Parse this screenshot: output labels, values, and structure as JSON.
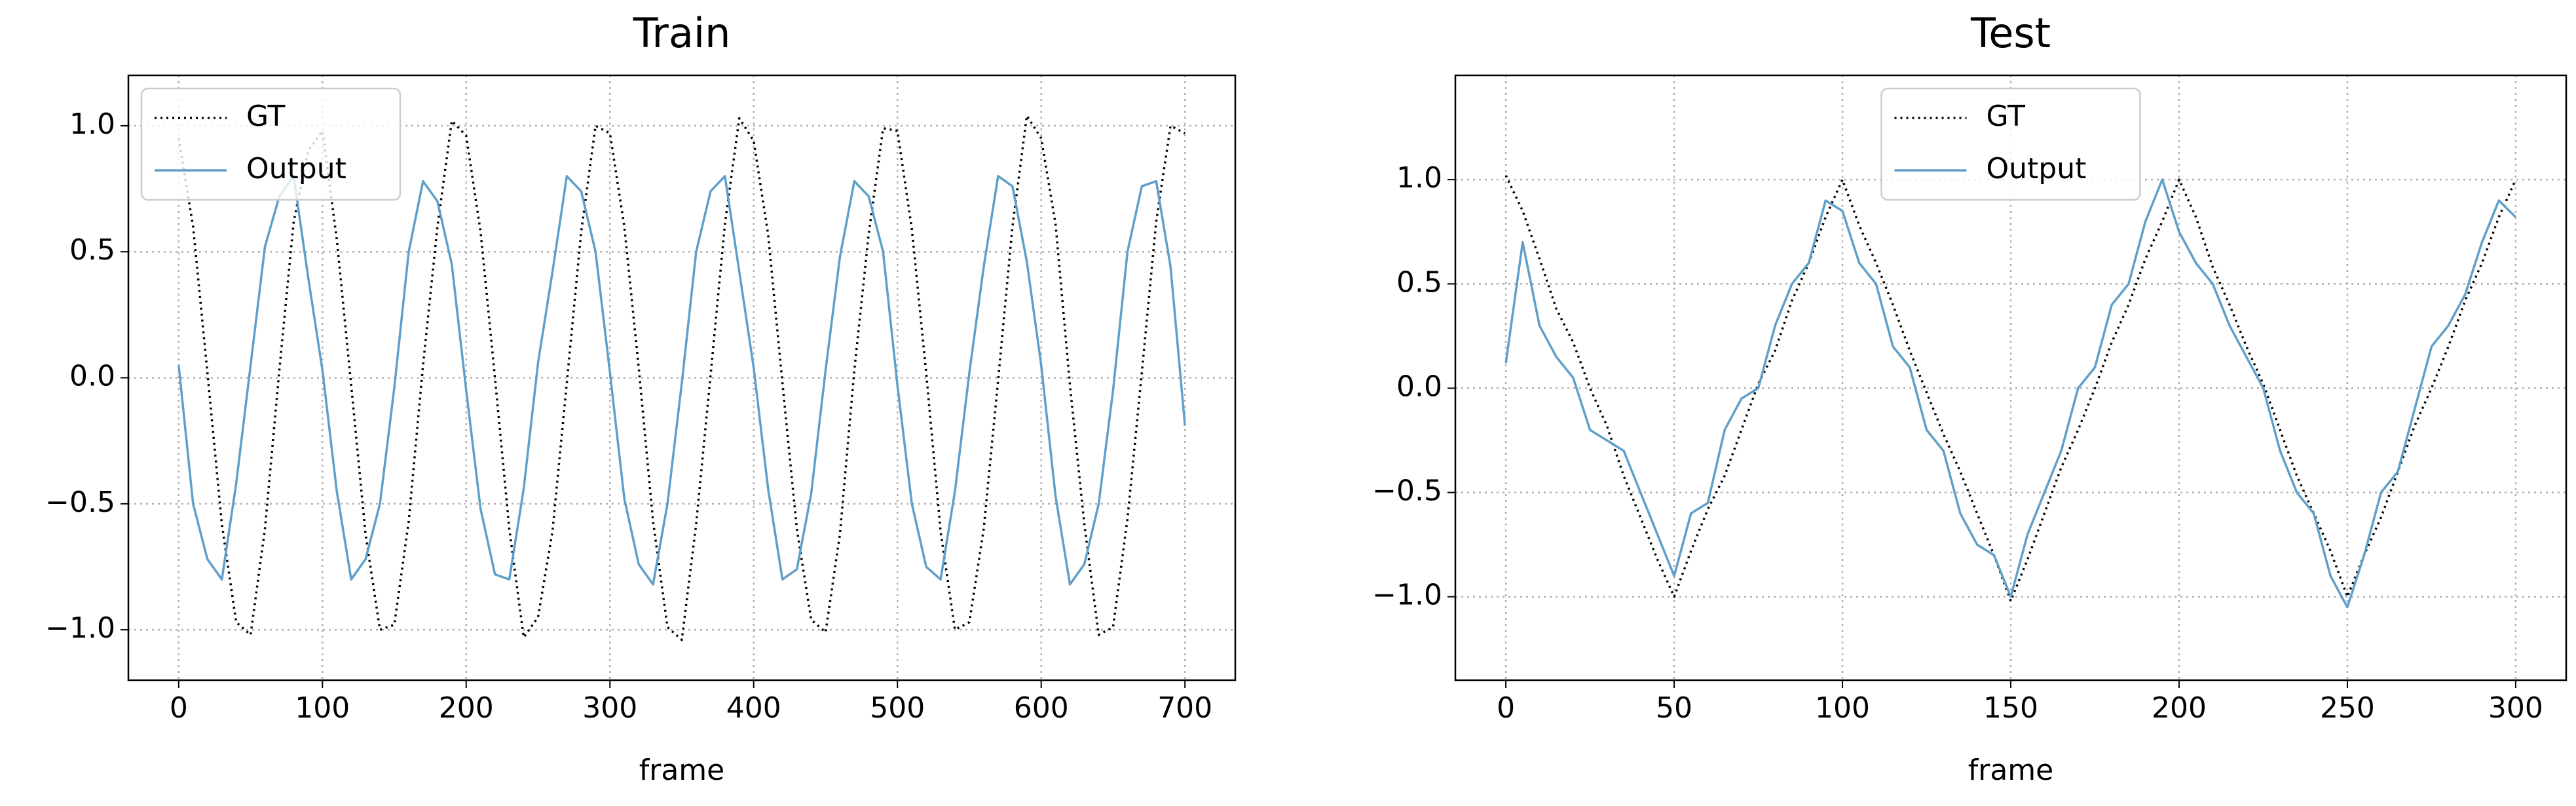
{
  "chart_data": [
    {
      "type": "line",
      "title": "Train",
      "xlabel": "frame",
      "x": [
        0,
        10,
        20,
        30,
        40,
        50,
        60,
        70,
        80,
        90,
        100,
        110,
        120,
        130,
        140,
        150,
        160,
        170,
        180,
        190,
        200,
        210,
        220,
        230,
        240,
        250,
        260,
        270,
        280,
        290,
        300,
        310,
        320,
        330,
        340,
        350,
        360,
        370,
        380,
        390,
        400,
        410,
        420,
        430,
        440,
        450,
        460,
        470,
        480,
        490,
        500,
        510,
        520,
        530,
        540,
        550,
        560,
        570,
        580,
        590,
        600,
        610,
        620,
        630,
        640,
        650,
        660,
        670,
        680,
        690,
        700
      ],
      "series": [
        {
          "name": "GT",
          "color": "#000000",
          "linestyle": "dotted",
          "values": [
            0.95,
            0.6,
            0.02,
            -0.58,
            -0.97,
            -1.02,
            -0.6,
            0.03,
            0.62,
            0.9,
            0.98,
            0.55,
            -0.03,
            -0.62,
            -1.0,
            -0.98,
            -0.57,
            0.05,
            0.6,
            1.02,
            0.96,
            0.58,
            0.0,
            -0.6,
            -1.03,
            -0.95,
            -0.61,
            -0.02,
            0.58,
            1.0,
            0.97,
            0.6,
            0.04,
            -0.57,
            -0.99,
            -1.04,
            -0.58,
            0.01,
            0.61,
            1.03,
            0.94,
            0.57,
            -0.02,
            -0.6,
            -0.96,
            -1.01,
            -0.62,
            0.03,
            0.57,
            0.99,
            0.98,
            0.59,
            0.02,
            -0.61,
            -1.0,
            -0.97,
            -0.6,
            -0.01,
            0.6,
            1.04,
            0.95,
            0.61,
            -0.03,
            -0.58,
            -1.02,
            -0.99,
            -0.56,
            0.02,
            0.62,
            1.0,
            0.97
          ]
        },
        {
          "name": "Output",
          "color": "#5f9fc9",
          "linestyle": "solid",
          "values": [
            0.05,
            -0.5,
            -0.72,
            -0.8,
            -0.42,
            0.05,
            0.52,
            0.72,
            0.8,
            0.4,
            0.03,
            -0.45,
            -0.8,
            -0.72,
            -0.5,
            -0.04,
            0.5,
            0.78,
            0.7,
            0.45,
            -0.05,
            -0.52,
            -0.78,
            -0.8,
            -0.44,
            0.06,
            0.42,
            0.8,
            0.74,
            0.5,
            0.02,
            -0.48,
            -0.74,
            -0.82,
            -0.5,
            -0.02,
            0.5,
            0.74,
            0.8,
            0.42,
            0.04,
            -0.44,
            -0.8,
            -0.76,
            -0.46,
            0.03,
            0.48,
            0.78,
            0.72,
            0.5,
            -0.03,
            -0.5,
            -0.75,
            -0.8,
            -0.45,
            0.02,
            0.44,
            0.8,
            0.76,
            0.46,
            0.05,
            -0.47,
            -0.82,
            -0.74,
            -0.5,
            -0.05,
            0.5,
            0.76,
            0.78,
            0.44,
            -0.19
          ]
        }
      ],
      "xlim": [
        -35,
        735
      ],
      "xticks": [
        0,
        100,
        200,
        300,
        400,
        500,
        600,
        700
      ],
      "ylim": [
        -1.2,
        1.2
      ],
      "yticks": [
        {
          "value": -1,
          "label": "−1.0"
        },
        {
          "value": -0.5,
          "label": "−0.5"
        },
        {
          "value": 0,
          "label": "0.0"
        },
        {
          "value": 0.5,
          "label": "0.5"
        },
        {
          "value": 1,
          "label": "1.0"
        }
      ],
      "grid": true,
      "legend": "upper left"
    },
    {
      "type": "line",
      "title": "Test",
      "xlabel": "frame",
      "x": [
        0,
        5,
        10,
        15,
        20,
        25,
        30,
        35,
        40,
        45,
        50,
        55,
        60,
        65,
        70,
        75,
        80,
        85,
        90,
        95,
        100,
        105,
        110,
        115,
        120,
        125,
        130,
        135,
        140,
        145,
        150,
        155,
        160,
        165,
        170,
        175,
        180,
        185,
        190,
        195,
        200,
        205,
        210,
        215,
        220,
        225,
        230,
        235,
        240,
        245,
        250,
        255,
        260,
        265,
        270,
        275,
        280,
        285,
        290,
        295,
        300
      ],
      "series": [
        {
          "name": "GT",
          "color": "#000000",
          "linestyle": "dotted",
          "values": [
            1.02,
            0.85,
            0.62,
            0.38,
            0.22,
            0.0,
            -0.18,
            -0.42,
            -0.62,
            -0.82,
            -1.0,
            -0.78,
            -0.58,
            -0.42,
            -0.2,
            0.02,
            0.18,
            0.42,
            0.6,
            0.82,
            1.0,
            0.78,
            0.6,
            0.4,
            0.18,
            -0.02,
            -0.22,
            -0.4,
            -0.6,
            -0.8,
            -1.02,
            -0.82,
            -0.6,
            -0.38,
            -0.2,
            0.0,
            0.22,
            0.4,
            0.62,
            0.8,
            1.0,
            0.82,
            0.58,
            0.4,
            0.2,
            0.02,
            -0.2,
            -0.42,
            -0.6,
            -0.78,
            -1.0,
            -0.8,
            -0.62,
            -0.4,
            -0.18,
            0.0,
            0.2,
            0.42,
            0.6,
            0.82,
            1.0
          ]
        },
        {
          "name": "Output",
          "color": "#5f9fc9",
          "linestyle": "solid",
          "values": [
            0.12,
            0.7,
            0.3,
            0.15,
            0.05,
            -0.2,
            -0.25,
            -0.3,
            -0.5,
            -0.7,
            -0.9,
            -0.6,
            -0.55,
            -0.2,
            -0.05,
            0.0,
            0.3,
            0.5,
            0.6,
            0.9,
            0.85,
            0.6,
            0.5,
            0.2,
            0.1,
            -0.2,
            -0.3,
            -0.6,
            -0.75,
            -0.8,
            -1.0,
            -0.7,
            -0.5,
            -0.3,
            0.0,
            0.1,
            0.4,
            0.5,
            0.8,
            1.0,
            0.75,
            0.6,
            0.5,
            0.3,
            0.15,
            0.0,
            -0.3,
            -0.5,
            -0.6,
            -0.9,
            -1.05,
            -0.8,
            -0.5,
            -0.4,
            -0.1,
            0.2,
            0.3,
            0.45,
            0.7,
            0.9,
            0.82
          ]
        }
      ],
      "xlim": [
        -15,
        315
      ],
      "xticks": [
        0,
        50,
        100,
        150,
        200,
        250,
        300
      ],
      "ylim": [
        -1.4,
        1.5
      ],
      "yticks": [
        {
          "value": -1,
          "label": "−1.0"
        },
        {
          "value": -0.5,
          "label": "−0.5"
        },
        {
          "value": 0,
          "label": "0.0"
        },
        {
          "value": 0.5,
          "label": "0.5"
        },
        {
          "value": 1,
          "label": "1.0"
        }
      ],
      "grid": true,
      "legend": "upper center"
    }
  ]
}
